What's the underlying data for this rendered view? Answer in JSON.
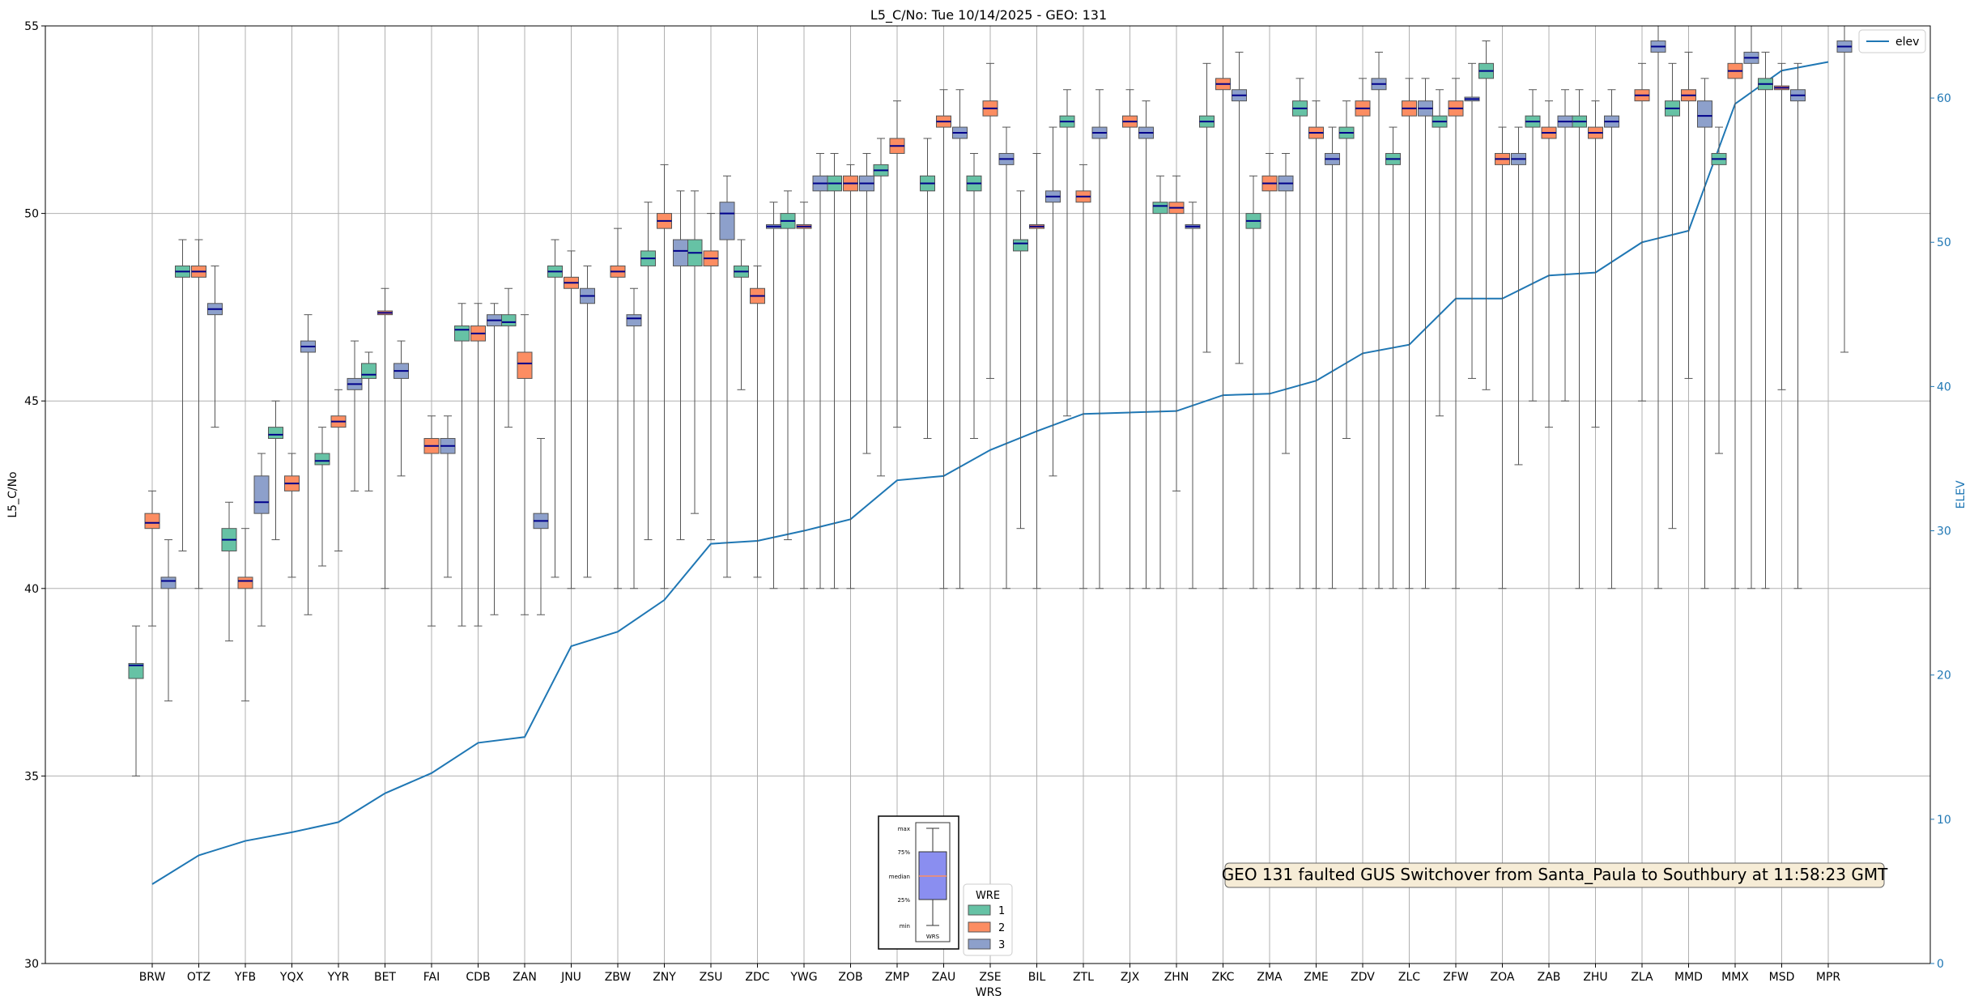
{
  "chart_data": {
    "type": "box",
    "title": "L5_C/No: Tue 10/14/2025 - GEO: 131",
    "xlabel": "WRS",
    "ylabel": "L5_C/No",
    "y2label": "ELEV",
    "ylim": [
      30,
      55
    ],
    "y2lim": [
      0,
      65
    ],
    "yticks": [
      30,
      35,
      40,
      45,
      50,
      55
    ],
    "y2ticks": [
      0,
      10,
      20,
      30,
      40,
      50,
      60
    ],
    "grid": true,
    "colors": {
      "wre1": "#66c2a5",
      "wre2": "#fc8d62",
      "wre3": "#8da0cb",
      "median": "#00008b",
      "elev": "#1f77b4",
      "whisker": "#555555",
      "grid": "#b0b0b0"
    },
    "categories": [
      "BRW",
      "OTZ",
      "YFB",
      "YQX",
      "YYR",
      "BET",
      "FAI",
      "CDB",
      "ZAN",
      "JNU",
      "ZBW",
      "ZNY",
      "ZSU",
      "ZDC",
      "YWG",
      "ZOB",
      "ZMP",
      "ZAU",
      "ZSE",
      "BIL",
      "ZTL",
      "ZJX",
      "ZHN",
      "ZKC",
      "ZMA",
      "ZME",
      "ZDV",
      "ZLC",
      "ZFW",
      "ZOA",
      "ZAB",
      "ZHU",
      "ZLA",
      "MMD",
      "MMX",
      "MSD",
      "MPR"
    ],
    "boxes": {
      "1": [
        [
          35,
          37.6,
          37.95,
          38,
          39
        ],
        [
          41,
          48.3,
          48.45,
          48.6,
          49.3
        ],
        [
          38.6,
          41,
          41.3,
          41.6,
          42.3
        ],
        [
          41.3,
          44,
          44.1,
          44.3,
          45
        ],
        [
          40.6,
          43.3,
          43.4,
          43.6,
          44.3
        ],
        [
          42.6,
          45.6,
          45.7,
          46,
          46.3
        ],
        null,
        [
          39,
          46.6,
          46.9,
          47,
          47.6
        ],
        [
          44.3,
          47,
          47.1,
          47.3,
          48
        ],
        [
          40.3,
          48.3,
          48.45,
          48.6,
          49.3
        ],
        null,
        [
          41.3,
          48.6,
          48.8,
          49,
          50.3
        ],
        [
          42,
          48.6,
          48.95,
          49.3,
          50.6
        ],
        [
          45.3,
          48.3,
          48.45,
          48.6,
          49.3
        ],
        [
          41.3,
          49.6,
          49.8,
          50,
          50.6
        ],
        [
          40,
          50.6,
          50.8,
          51,
          51.6
        ],
        [
          43,
          51,
          51.15,
          51.3,
          52
        ],
        [
          44,
          50.6,
          50.8,
          51,
          52
        ],
        [
          44,
          50.6,
          50.8,
          51,
          51.6
        ],
        [
          41.6,
          49,
          49.2,
          49.3,
          50.6
        ],
        [
          44.6,
          52.3,
          52.45,
          52.6,
          53.3
        ],
        null,
        [
          40,
          50,
          50.2,
          50.3,
          51
        ],
        [
          46.3,
          52.3,
          52.45,
          52.6,
          54
        ],
        [
          40,
          49.6,
          49.8,
          50,
          51
        ],
        [
          40,
          52.6,
          52.8,
          53,
          53.6
        ],
        [
          44,
          52,
          52.15,
          52.3,
          53
        ],
        [
          40,
          51.3,
          51.45,
          51.6,
          52.3
        ],
        [
          44.6,
          52.3,
          52.45,
          52.6,
          53.3
        ],
        [
          45.3,
          53.6,
          53.8,
          54,
          54.6
        ],
        [
          45,
          52.3,
          52.45,
          52.6,
          53.3
        ],
        [
          40,
          52.3,
          52.45,
          52.6,
          53.3
        ],
        null,
        [
          41.6,
          52.6,
          52.8,
          53,
          54
        ],
        [
          43.6,
          51.3,
          51.45,
          51.6,
          52.3
        ],
        [
          40,
          53.3,
          53.45,
          53.6,
          54.3
        ],
        null
      ],
      "2": [
        [
          39,
          41.6,
          41.75,
          42,
          42.6
        ],
        [
          40,
          48.3,
          48.45,
          48.6,
          49.3
        ],
        [
          37,
          40,
          40.2,
          40.3,
          41.6
        ],
        [
          40.3,
          42.6,
          42.8,
          43,
          43.6
        ],
        [
          41,
          44.3,
          44.45,
          44.6,
          45.3
        ],
        [
          40,
          47.3,
          47.35,
          47.4,
          48
        ],
        [
          39,
          43.6,
          43.8,
          44,
          44.6
        ],
        [
          39,
          46.6,
          46.8,
          47,
          47.6
        ],
        [
          39.3,
          45.6,
          46,
          46.3,
          47.3
        ],
        [
          40,
          48,
          48.15,
          48.3,
          49
        ],
        [
          40,
          48.3,
          48.45,
          48.6,
          49.6
        ],
        [
          40,
          49.6,
          49.8,
          50,
          51.3
        ],
        [
          41.3,
          48.6,
          48.8,
          49,
          50
        ],
        [
          40.3,
          47.6,
          47.8,
          48,
          48.6
        ],
        [
          40,
          49.6,
          49.65,
          49.7,
          50.3
        ],
        [
          40,
          50.6,
          50.8,
          51,
          51.3
        ],
        [
          44.3,
          51.6,
          51.8,
          52,
          53
        ],
        [
          40,
          52.3,
          52.45,
          52.6,
          53.3
        ],
        [
          45.6,
          52.6,
          52.8,
          53,
          54
        ],
        [
          40,
          49.6,
          49.65,
          49.7,
          51.6
        ],
        [
          40,
          50.3,
          50.45,
          50.6,
          51.3
        ],
        [
          40,
          52.3,
          52.45,
          52.6,
          53.3
        ],
        [
          42.6,
          50,
          50.15,
          50.3,
          51
        ],
        [
          40,
          53.3,
          53.45,
          53.6,
          55
        ],
        [
          40,
          50.6,
          50.8,
          51,
          51.6
        ],
        [
          40,
          52,
          52.15,
          52.3,
          53
        ],
        [
          40,
          52.6,
          52.8,
          53,
          53.6
        ],
        [
          40,
          52.6,
          52.8,
          53,
          53.6
        ],
        [
          40,
          52.6,
          52.8,
          53,
          53.6
        ],
        [
          40,
          51.3,
          51.45,
          51.6,
          52.3
        ],
        [
          44.3,
          52,
          52.15,
          52.3,
          53
        ],
        [
          44.3,
          52,
          52.15,
          52.3,
          53
        ],
        [
          45,
          53,
          53.15,
          53.3,
          54
        ],
        [
          45.6,
          53,
          53.15,
          53.3,
          54.3
        ],
        [
          40,
          53.6,
          53.8,
          54,
          55
        ],
        [
          45.3,
          53.3,
          53.35,
          53.4,
          54
        ],
        null
      ],
      "3": [
        [
          37,
          40,
          40.2,
          40.3,
          41.3
        ],
        [
          44.3,
          47.3,
          47.45,
          47.6,
          48.6
        ],
        [
          39,
          42,
          42.3,
          43,
          43.6
        ],
        [
          39.3,
          46.3,
          46.45,
          46.6,
          47.3
        ],
        [
          42.6,
          45.3,
          45.45,
          45.6,
          46.6
        ],
        [
          43,
          45.6,
          45.8,
          46,
          46.6
        ],
        [
          40.3,
          43.6,
          43.8,
          44,
          44.6
        ],
        [
          39.3,
          47,
          47.15,
          47.3,
          47.6
        ],
        [
          39.3,
          41.6,
          41.8,
          42,
          44
        ],
        [
          40.3,
          47.6,
          47.8,
          48,
          48.6
        ],
        [
          40,
          47,
          47.2,
          47.3,
          48
        ],
        [
          41.3,
          48.6,
          49,
          49.3,
          50.6
        ],
        [
          40.3,
          49.3,
          50,
          50.3,
          51
        ],
        [
          40,
          49.6,
          49.65,
          49.7,
          50.3
        ],
        [
          40,
          50.6,
          50.8,
          51,
          51.6
        ],
        [
          43.6,
          50.6,
          50.8,
          51,
          51.6
        ],
        null,
        [
          40,
          52,
          52.15,
          52.3,
          53.3
        ],
        [
          40,
          51.3,
          51.45,
          51.6,
          52.3
        ],
        [
          43,
          50.3,
          50.45,
          50.6,
          52.3
        ],
        [
          40,
          52,
          52.15,
          52.3,
          53.3
        ],
        [
          40,
          52,
          52.15,
          52.3,
          53
        ],
        [
          40,
          49.6,
          49.65,
          49.7,
          50.3
        ],
        [
          46,
          53,
          53.15,
          53.3,
          54.3
        ],
        [
          43.6,
          50.6,
          50.8,
          51,
          51.6
        ],
        [
          40,
          51.3,
          51.45,
          51.6,
          52.3
        ],
        [
          40,
          53.3,
          53.45,
          53.6,
          54.3
        ],
        [
          40,
          52.6,
          52.8,
          53,
          53.6
        ],
        [
          45.6,
          53,
          53.05,
          53.1,
          54
        ],
        [
          43.3,
          51.3,
          51.45,
          51.6,
          52.3
        ],
        [
          45,
          52.3,
          52.45,
          52.6,
          53.3
        ],
        [
          40,
          52.3,
          52.45,
          52.6,
          53.3
        ],
        [
          40,
          54.3,
          54.45,
          54.6,
          55
        ],
        [
          40,
          52.3,
          52.6,
          53,
          53.6
        ],
        [
          40,
          54,
          54.15,
          54.3,
          55
        ],
        [
          40,
          53,
          53.15,
          53.3,
          54
        ],
        [
          46.3,
          54.3,
          54.45,
          54.6,
          55
        ]
      ]
    },
    "elev": [
      5.5,
      7.5,
      8.5,
      9.1,
      9.8,
      11.8,
      13.2,
      15.3,
      15.7,
      22,
      23,
      25.2,
      29.1,
      29.3,
      30,
      30.8,
      33.5,
      33.8,
      35.6,
      36.9,
      38.1,
      38.2,
      38.3,
      39.4,
      39.5,
      40.4,
      42.3,
      42.9,
      46.1,
      46.1,
      47.7,
      47.9,
      50,
      50.8,
      59.6,
      61.9,
      62.5
    ],
    "legends": {
      "line": {
        "label": "elev",
        "position": "top-right"
      },
      "wre": {
        "title": "WRE",
        "items": [
          "1",
          "2",
          "3"
        ],
        "position": "bottom-center"
      }
    },
    "box_key": {
      "labels": [
        "max",
        "75%",
        "median",
        "25%",
        "min"
      ],
      "caption": "WRS",
      "color": "#8a8ef0"
    },
    "annotation": "GEO 131 faulted GUS Switchover from Santa_Paula to Southbury at 11:58:23 GMT"
  }
}
